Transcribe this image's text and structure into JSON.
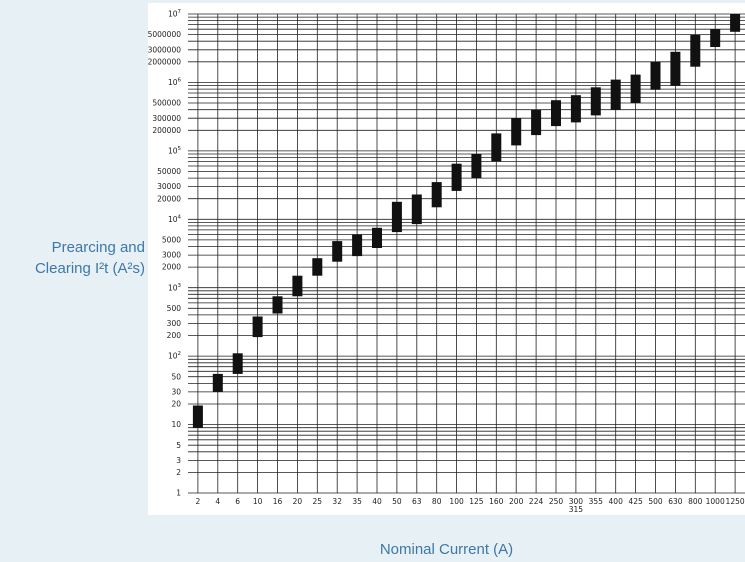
{
  "chart_data": {
    "type": "bar",
    "title": "",
    "ylabel": "Prearcing and Clearing I²t (A²s)",
    "xlabel": "Nominal Current (A)",
    "yscale": "log",
    "ylim": [
      1,
      10000000
    ],
    "grid": true,
    "y_ticks": [
      {
        "value": 1,
        "label": "1"
      },
      {
        "value": 2,
        "label": "2"
      },
      {
        "value": 3,
        "label": "3"
      },
      {
        "value": 5,
        "label": "5"
      },
      {
        "value": 10,
        "label": "10"
      },
      {
        "value": 20,
        "label": "20"
      },
      {
        "value": 30,
        "label": "30"
      },
      {
        "value": 50,
        "label": "50"
      },
      {
        "value": 100,
        "label": "10",
        "exp": "2"
      },
      {
        "value": 200,
        "label": "200"
      },
      {
        "value": 300,
        "label": "300"
      },
      {
        "value": 500,
        "label": "500"
      },
      {
        "value": 1000,
        "label": "10",
        "exp": "3"
      },
      {
        "value": 2000,
        "label": "2000"
      },
      {
        "value": 3000,
        "label": "3000"
      },
      {
        "value": 5000,
        "label": "5000"
      },
      {
        "value": 10000,
        "label": "10",
        "exp": "4"
      },
      {
        "value": 20000,
        "label": "20000"
      },
      {
        "value": 30000,
        "label": "30000"
      },
      {
        "value": 50000,
        "label": "50000"
      },
      {
        "value": 100000,
        "label": "10",
        "exp": "5"
      },
      {
        "value": 200000,
        "label": "200000"
      },
      {
        "value": 300000,
        "label": "300000"
      },
      {
        "value": 500000,
        "label": "500000"
      },
      {
        "value": 1000000,
        "label": "10",
        "exp": "6"
      },
      {
        "value": 2000000,
        "label": "2000000"
      },
      {
        "value": 3000000,
        "label": "3000000"
      },
      {
        "value": 5000000,
        "label": "5000000"
      },
      {
        "value": 10000000,
        "label": "10",
        "exp": "7"
      }
    ],
    "categories": [
      "2",
      "4",
      "6",
      "10",
      "16",
      "20",
      "25",
      "32",
      "35",
      "40",
      "50",
      "63",
      "80",
      "100",
      "125",
      "160",
      "200",
      "224",
      "250",
      "300",
      "355",
      "400",
      "425",
      "500",
      "630",
      "800",
      "1000",
      "1250"
    ],
    "category_sublabels": {
      "300": "315"
    },
    "series": [
      {
        "low": [
          9,
          30,
          55,
          190,
          420,
          750,
          1500,
          2400,
          2900,
          3800,
          6500,
          8500,
          15000,
          26000,
          40000,
          70000,
          120000,
          170000,
          230000,
          260000,
          330000,
          400000,
          500000,
          780000,
          900000,
          1700000,
          3300000,
          5500000
        ],
        "high": [
          19,
          55,
          110,
          380,
          750,
          1500,
          2700,
          4800,
          6000,
          7500,
          18000,
          23000,
          35000,
          65000,
          90000,
          180000,
          300000,
          400000,
          550000,
          650000,
          850000,
          1100000,
          1300000,
          2000000,
          2800000,
          5000000,
          6000000,
          12000000
        ]
      }
    ]
  }
}
